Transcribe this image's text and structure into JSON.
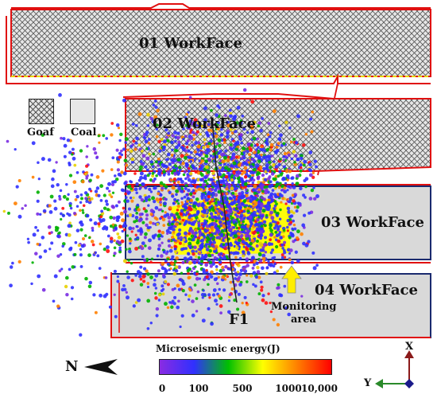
{
  "workfaces": {
    "wf01": "01 WorkFace",
    "wf02": "02 WorkFace",
    "wf03": "03 WorkFace",
    "wf04": "04 WorkFace"
  },
  "legend": {
    "goaf": "Goaf",
    "coal": "Coal"
  },
  "fault_label": "F1",
  "monitoring": {
    "line1": "Monitoring",
    "line2": "area"
  },
  "north": "N",
  "colorbar": {
    "title": "Microseismic energy(J)",
    "ticks": [
      "0",
      "100",
      "500",
      "1000",
      "10,000"
    ],
    "colors": [
      "#8a2be2",
      "#3030ff",
      "#00c000",
      "#ffff00",
      "#ff8000",
      "#ff0000"
    ]
  },
  "axes": {
    "x": "X",
    "y": "Y"
  },
  "colors": {
    "boundary": "#e01010",
    "frame_blue": "#1a2a6e",
    "coal_fill": "#d9d9d9",
    "monitor_yellow": "#ffff00",
    "arrow_yellow": "#ffee00"
  }
}
